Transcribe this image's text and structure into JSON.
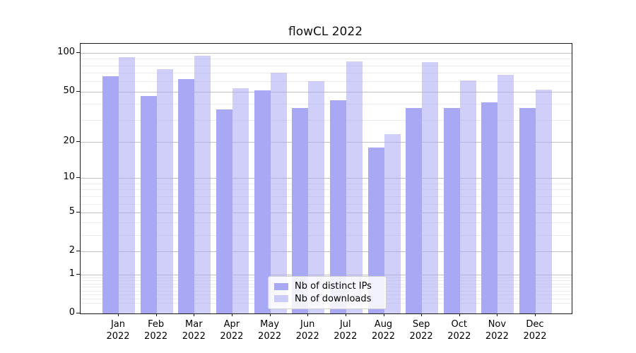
{
  "chart_data": {
    "type": "bar",
    "title": "flowCL 2022",
    "months": [
      "Jan",
      "Feb",
      "Mar",
      "Apr",
      "May",
      "Jun",
      "Jul",
      "Aug",
      "Sep",
      "Oct",
      "Nov",
      "Dec"
    ],
    "year_label": "2022",
    "categories": [
      "Jan 2022",
      "Feb 2022",
      "Mar 2022",
      "Apr 2022",
      "May 2022",
      "Jun 2022",
      "Jul 2022",
      "Aug 2022",
      "Sep 2022",
      "Oct 2022",
      "Nov 2022",
      "Dec 2022"
    ],
    "series": [
      {
        "name": "Nb of distinct IPs",
        "color": "#a8a8f4",
        "values": [
          66,
          46,
          63,
          36,
          51,
          37,
          43,
          18,
          37,
          37,
          41,
          37
        ]
      },
      {
        "name": "Nb of downloads",
        "color": "rgba(168,168,244,0.55)",
        "values": [
          93,
          75,
          95,
          53,
          70,
          60,
          86,
          23,
          85,
          61,
          68,
          52
        ]
      }
    ],
    "y_scale": "log1p",
    "y_ticks": [
      0,
      1,
      2,
      5,
      10,
      20,
      50,
      100
    ],
    "y_minor_gridlines": [
      0.2,
      0.3,
      0.4,
      0.5,
      0.6,
      0.7,
      0.8,
      0.9,
      3,
      4,
      6,
      7,
      8,
      9,
      30,
      40,
      60,
      70,
      80,
      90
    ],
    "ylim": [
      0,
      118
    ],
    "grid": true,
    "legend_position": "lower center"
  }
}
